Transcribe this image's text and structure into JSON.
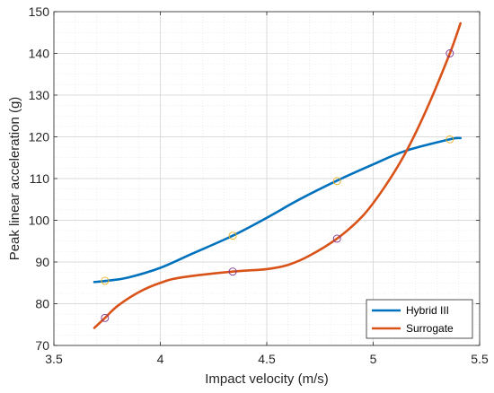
{
  "chart_data": {
    "type": "line",
    "xlabel": "Impact velocity (m/s)",
    "ylabel": "Peak linear acceleration (g)",
    "xlim": [
      3.5,
      5.5
    ],
    "ylim": [
      70,
      150
    ],
    "xticks": [
      "3.5",
      "4",
      "4.5",
      "5",
      "5.5"
    ],
    "yticks": [
      "70",
      "80",
      "90",
      "100",
      "110",
      "120",
      "130",
      "140",
      "150"
    ],
    "grid": true,
    "minor_grid": true,
    "legend_position": "bottom-right",
    "series": [
      {
        "name": "Hybrid III",
        "color": "#0072BD",
        "marker_color": "#EDB120",
        "curve": {
          "x": [
            3.69,
            3.75,
            3.85,
            4.0,
            4.15,
            4.34,
            4.5,
            4.65,
            4.83,
            5.0,
            5.15,
            5.36,
            5.41
          ],
          "y": [
            85.2,
            85.5,
            86.3,
            88.6,
            92.0,
            96.3,
            100.6,
            104.9,
            109.5,
            113.4,
            116.6,
            119.4,
            119.7
          ]
        },
        "points": {
          "x": [
            3.74,
            4.34,
            4.83,
            5.36
          ],
          "y": [
            85.5,
            96.3,
            109.4,
            119.4
          ]
        }
      },
      {
        "name": "Surrogate",
        "color": "#D95319",
        "marker_color": "#7E2F8E",
        "curve": {
          "x": [
            3.69,
            3.74,
            3.8,
            3.9,
            4.0,
            4.1,
            4.34,
            4.5,
            4.6,
            4.7,
            4.83,
            4.95,
            5.05,
            5.15,
            5.25,
            5.36,
            5.41
          ],
          "y": [
            74.2,
            76.6,
            79.5,
            82.8,
            85.0,
            86.3,
            87.7,
            88.3,
            89.3,
            91.5,
            95.6,
            101.0,
            107.7,
            116.0,
            126.5,
            140.0,
            147.2
          ]
        },
        "points": {
          "x": [
            3.74,
            4.34,
            4.83,
            5.36
          ],
          "y": [
            76.6,
            87.7,
            95.6,
            140.0
          ]
        }
      }
    ]
  }
}
